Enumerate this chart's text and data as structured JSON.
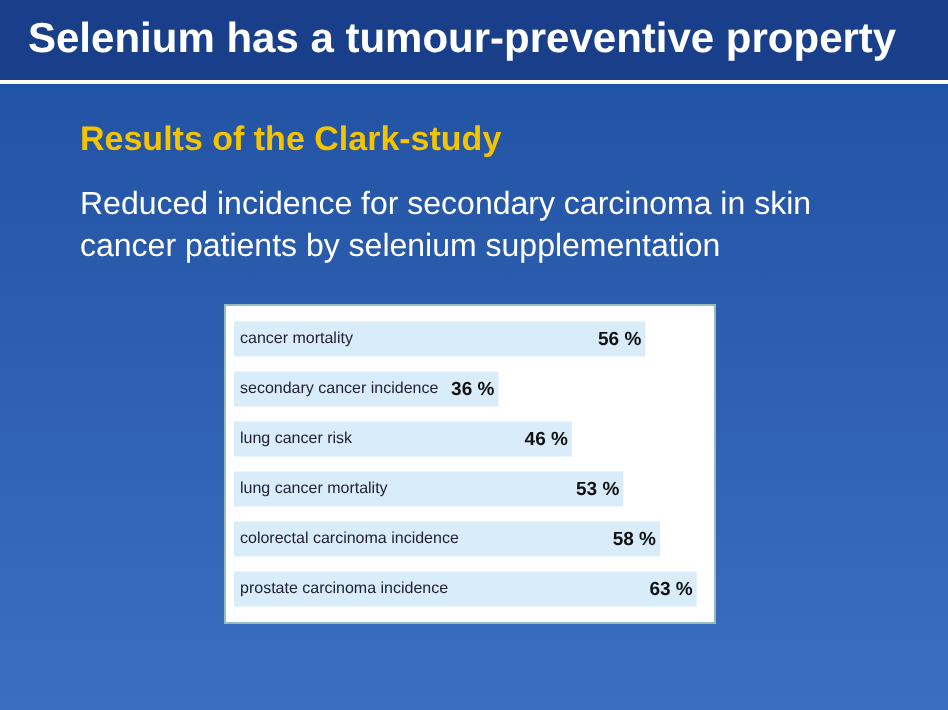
{
  "chart_data": {
    "type": "bar",
    "orientation": "horizontal",
    "title": "Selenium has a tumour-preventive property",
    "subtitle": "Results of the Clark-study",
    "annotations": [
      "Reduced incidence for secondary carcinoma in skin cancer patients by selenium supplementation"
    ],
    "categories": [
      "cancer mortality",
      "secondary cancer incidence",
      "lung cancer risk",
      "lung cancer mortality",
      "colorectal carcinoma incidence",
      "prostate carcinoma incidence"
    ],
    "values": [
      56,
      36,
      46,
      53,
      58,
      63
    ],
    "value_labels": [
      "56 %",
      "36 %",
      "46 %",
      "53 %",
      "58 %",
      "63 %"
    ],
    "color": "#d9ecfa"
  }
}
